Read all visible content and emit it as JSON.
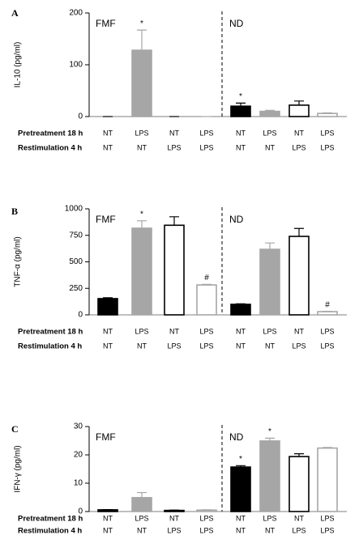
{
  "chart_data": [
    {
      "type": "bar",
      "panel": "A",
      "ylabel": "IL-10 (pg/ml)",
      "groups": [
        "FMF",
        "ND"
      ],
      "row_labels": [
        "Pretreatment 18 h",
        "Restimulation 4 h"
      ],
      "pretreatment": [
        "NT",
        "LPS",
        "NT",
        "LPS",
        "NT",
        "LPS",
        "NT",
        "LPS"
      ],
      "restimulation": [
        "NT",
        "NT",
        "LPS",
        "LPS",
        "NT",
        "NT",
        "LPS",
        "LPS"
      ],
      "values": [
        0,
        128,
        0,
        0,
        20,
        10,
        22,
        6
      ],
      "errors": [
        0,
        39,
        0,
        0,
        6,
        2,
        8,
        1
      ],
      "markers": [
        null,
        "*",
        null,
        null,
        "*",
        null,
        null,
        null
      ],
      "fill_colors": [
        "#000000",
        "#a6a6a6",
        "#ffffff",
        "#ffffff",
        "#000000",
        "#a6a6a6",
        "#ffffff",
        "#ffffff"
      ],
      "edge_colors": [
        "#000000",
        "#a6a6a6",
        "#000000",
        "#a6a6a6",
        "#000000",
        "#a6a6a6",
        "#000000",
        "#a6a6a6"
      ],
      "ylim": [
        0,
        200
      ],
      "yticks": [
        0,
        100,
        200
      ]
    },
    {
      "type": "bar",
      "panel": "B",
      "ylabel": "TNF-α (pg/ml)",
      "groups": [
        "FMF",
        "ND"
      ],
      "row_labels": [
        "Pretreatment 18 h",
        "Restimulation 4 h"
      ],
      "pretreatment": [
        "NT",
        "LPS",
        "NT",
        "LPS",
        "NT",
        "LPS",
        "NT",
        "LPS"
      ],
      "restimulation": [
        "NT",
        "NT",
        "LPS",
        "LPS",
        "NT",
        "NT",
        "LPS",
        "LPS"
      ],
      "values": [
        153,
        817,
        845,
        282,
        99,
        618,
        740,
        30
      ],
      "errors": [
        8,
        70,
        80,
        5,
        5,
        60,
        75,
        3
      ],
      "markers": [
        null,
        "*",
        null,
        "#",
        null,
        null,
        null,
        "#"
      ],
      "fill_colors": [
        "#000000",
        "#a6a6a6",
        "#ffffff",
        "#ffffff",
        "#000000",
        "#a6a6a6",
        "#ffffff",
        "#ffffff"
      ],
      "edge_colors": [
        "#000000",
        "#a6a6a6",
        "#000000",
        "#a6a6a6",
        "#000000",
        "#a6a6a6",
        "#000000",
        "#a6a6a6"
      ],
      "ylim": [
        0,
        1000
      ],
      "yticks": [
        0,
        250,
        500,
        750,
        1000
      ]
    },
    {
      "type": "bar",
      "panel": "C",
      "ylabel": "IFN-γ (pg/ml)",
      "groups": [
        "FMF",
        "ND"
      ],
      "row_labels": [
        "Pretreatment 18 h",
        "Restimulation 4 h"
      ],
      "pretreatment": [
        "NT",
        "LPS",
        "NT",
        "LPS",
        "NT",
        "LPS",
        "NT",
        "LPS"
      ],
      "restimulation": [
        "NT",
        "NT",
        "LPS",
        "LPS",
        "NT",
        "NT",
        "LPS",
        "LPS"
      ],
      "values": [
        0.6,
        4.9,
        0.4,
        0.5,
        15.7,
        24.9,
        19.4,
        22.4
      ],
      "errors": [
        0.1,
        1.8,
        0.1,
        0.1,
        0.5,
        1.0,
        1.0,
        0.2
      ],
      "markers": [
        null,
        null,
        null,
        null,
        "*",
        "*",
        null,
        null
      ],
      "fill_colors": [
        "#000000",
        "#a6a6a6",
        "#ffffff",
        "#ffffff",
        "#000000",
        "#a6a6a6",
        "#ffffff",
        "#ffffff"
      ],
      "edge_colors": [
        "#000000",
        "#a6a6a6",
        "#000000",
        "#a6a6a6",
        "#000000",
        "#a6a6a6",
        "#000000",
        "#a6a6a6"
      ],
      "ylim": [
        0,
        30
      ],
      "yticks": [
        0,
        10,
        20,
        30
      ]
    }
  ]
}
